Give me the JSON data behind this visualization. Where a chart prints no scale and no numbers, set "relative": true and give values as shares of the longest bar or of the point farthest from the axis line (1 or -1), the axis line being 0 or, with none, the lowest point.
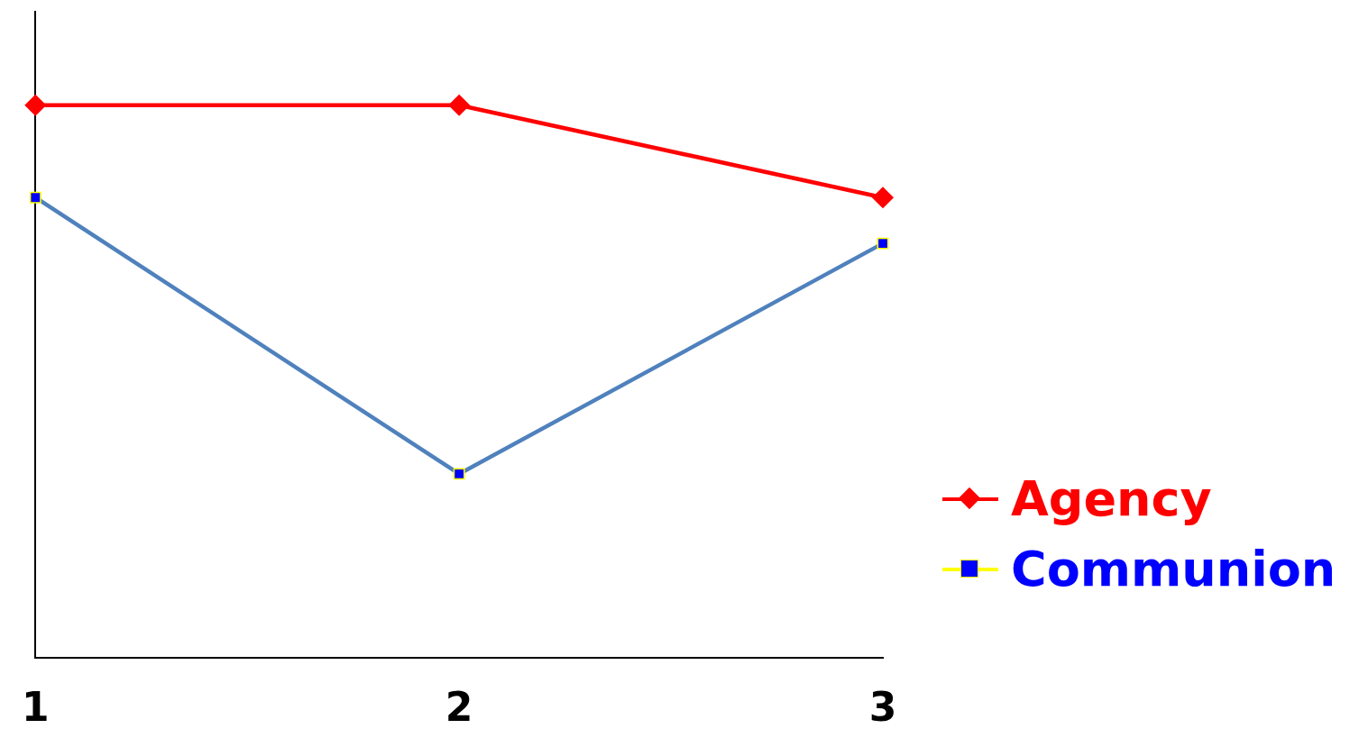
{
  "chart_data": {
    "type": "line",
    "relative": true,
    "categories": [
      "1",
      "2",
      "3"
    ],
    "series": [
      {
        "name": "Agency",
        "color": "#ff0000",
        "marker": "diamond",
        "values": [
          1,
          1,
          0.833
        ]
      },
      {
        "name": "Communion",
        "color": "#4f81bd",
        "colors": [
          "#0000ff",
          "#0000ff",
          "#0000ff"
        ],
        "marker": "square",
        "values": [
          0.833,
          0.333,
          0.75
        ]
      }
    ],
    "legend": "right",
    "grid": false
  }
}
